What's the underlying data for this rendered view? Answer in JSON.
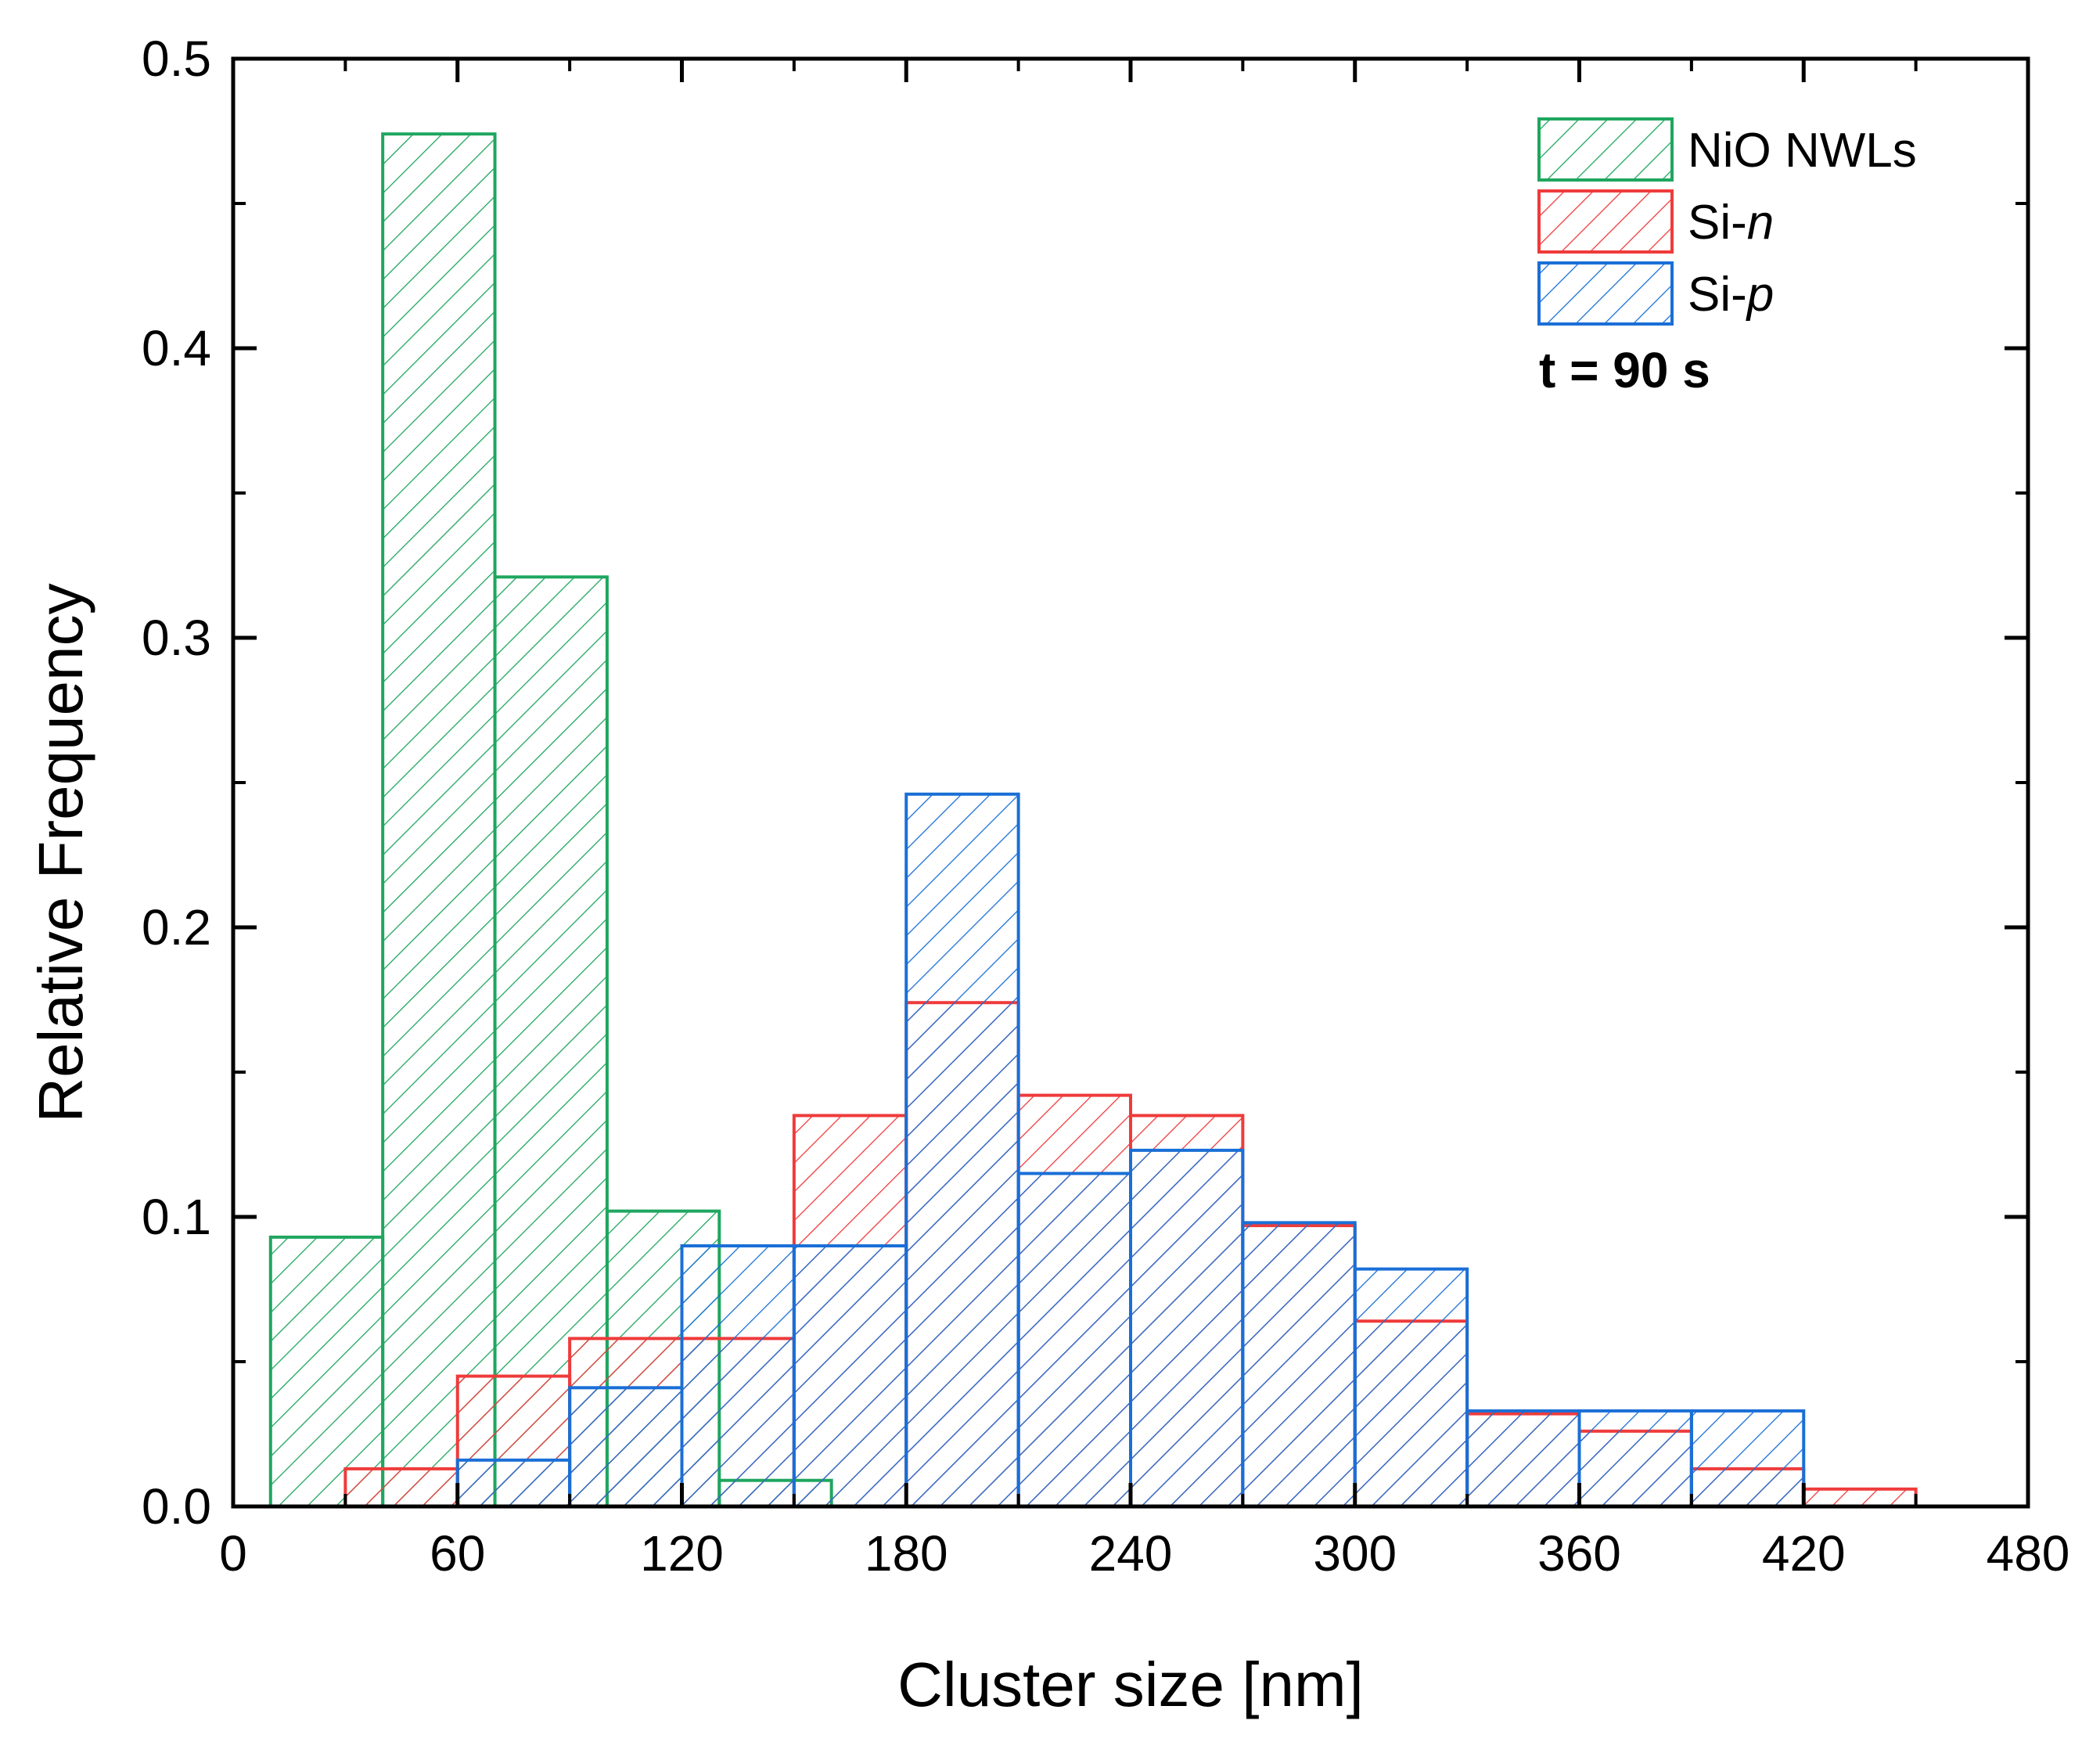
{
  "chart_data": {
    "type": "histogram",
    "xlabel": "Cluster size [nm]",
    "ylabel": "Relative Frequency",
    "xlim": [
      0,
      480
    ],
    "ylim": [
      0,
      0.5
    ],
    "xticks": [
      "0",
      "60",
      "120",
      "180",
      "240",
      "300",
      "360",
      "420",
      "480"
    ],
    "yticks": [
      "0.0",
      "0.1",
      "0.2",
      "0.3",
      "0.4",
      "0.5"
    ],
    "annotation": "t = 90 s",
    "legend_position": "top-right",
    "colors": {
      "nio": "#1fa65f",
      "sin": "#ef3b3b",
      "sip": "#1a6fd6"
    },
    "series": [
      {
        "key": "nio",
        "name_main": "NiO NWLs",
        "name_italic": "",
        "bins": [
          {
            "start": 10,
            "end": 40,
            "value": 0.093
          },
          {
            "start": 40,
            "end": 70,
            "value": 0.474
          },
          {
            "start": 70,
            "end": 100,
            "value": 0.321
          },
          {
            "start": 100,
            "end": 130,
            "value": 0.102
          },
          {
            "start": 130,
            "end": 160,
            "value": 0.009
          }
        ]
      },
      {
        "key": "sin",
        "name_main": "Si-",
        "name_italic": "n",
        "bins": [
          {
            "start": 30,
            "end": 60,
            "value": 0.013
          },
          {
            "start": 60,
            "end": 90,
            "value": 0.045
          },
          {
            "start": 90,
            "end": 120,
            "value": 0.058
          },
          {
            "start": 120,
            "end": 150,
            "value": 0.058
          },
          {
            "start": 150,
            "end": 180,
            "value": 0.135
          },
          {
            "start": 180,
            "end": 210,
            "value": 0.174
          },
          {
            "start": 210,
            "end": 240,
            "value": 0.142
          },
          {
            "start": 240,
            "end": 270,
            "value": 0.135
          },
          {
            "start": 270,
            "end": 300,
            "value": 0.097
          },
          {
            "start": 300,
            "end": 330,
            "value": 0.064
          },
          {
            "start": 330,
            "end": 360,
            "value": 0.032
          },
          {
            "start": 360,
            "end": 390,
            "value": 0.026
          },
          {
            "start": 390,
            "end": 420,
            "value": 0.013
          },
          {
            "start": 420,
            "end": 450,
            "value": 0.006
          }
        ]
      },
      {
        "key": "sip",
        "name_main": "Si-",
        "name_italic": "p",
        "bins": [
          {
            "start": 60,
            "end": 90,
            "value": 0.016
          },
          {
            "start": 90,
            "end": 120,
            "value": 0.041
          },
          {
            "start": 120,
            "end": 150,
            "value": 0.09
          },
          {
            "start": 150,
            "end": 180,
            "value": 0.09
          },
          {
            "start": 180,
            "end": 210,
            "value": 0.246
          },
          {
            "start": 210,
            "end": 240,
            "value": 0.115
          },
          {
            "start": 240,
            "end": 270,
            "value": 0.123
          },
          {
            "start": 270,
            "end": 300,
            "value": 0.098
          },
          {
            "start": 300,
            "end": 330,
            "value": 0.082
          },
          {
            "start": 330,
            "end": 360,
            "value": 0.033
          },
          {
            "start": 360,
            "end": 390,
            "value": 0.033
          },
          {
            "start": 390,
            "end": 420,
            "value": 0.033
          }
        ]
      }
    ]
  }
}
